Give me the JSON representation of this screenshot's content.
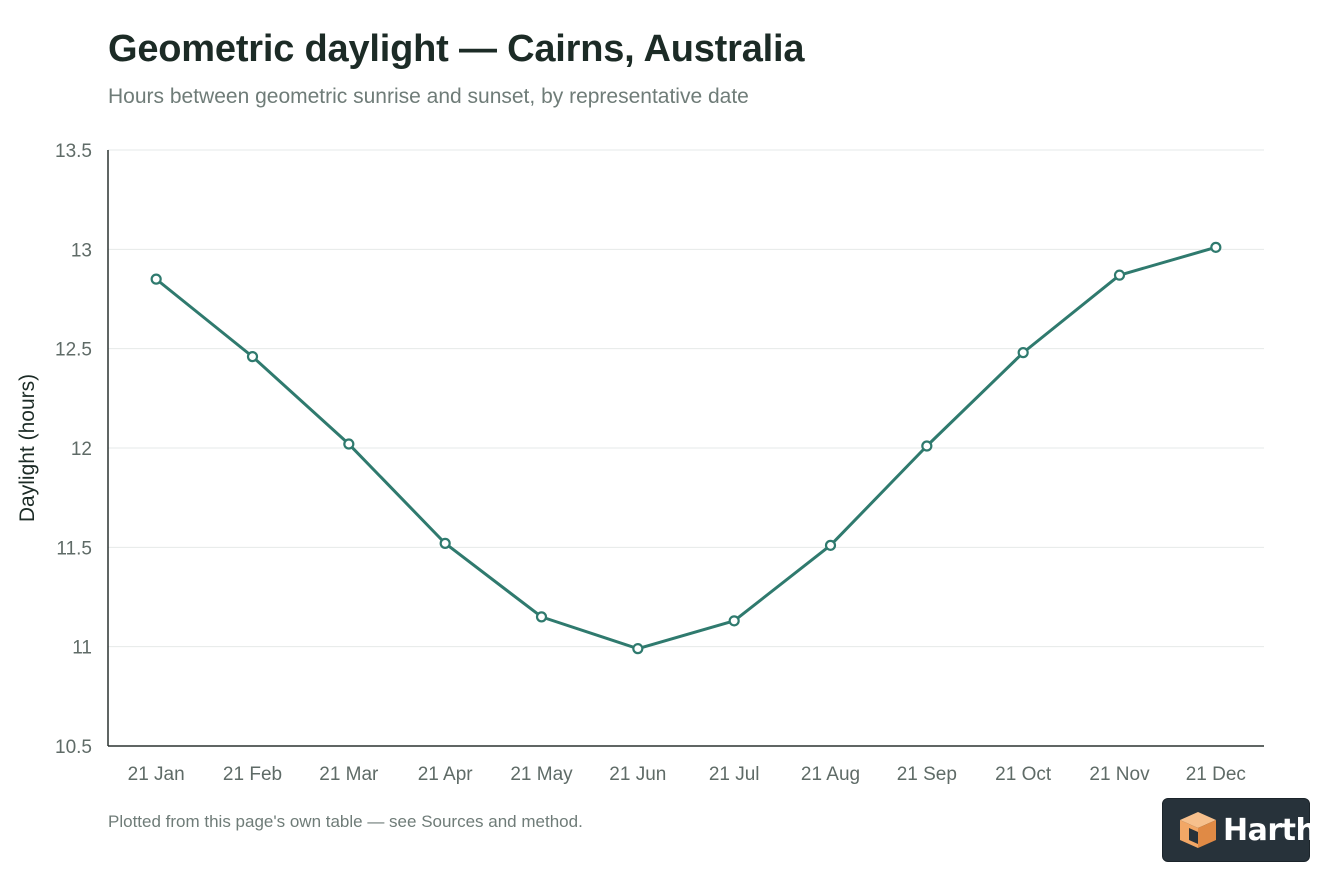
{
  "chart_data": {
    "type": "line",
    "title": "Geometric daylight — Cairns, Australia",
    "subtitle": "Hours between geometric sunrise and sunset, by representative date",
    "xlabel": "",
    "ylabel": "Daylight (hours)",
    "categories": [
      "21 Jan",
      "21 Feb",
      "21 Mar",
      "21 Apr",
      "21 May",
      "21 Jun",
      "21 Jul",
      "21 Aug",
      "21 Sep",
      "21 Oct",
      "21 Nov",
      "21 Dec"
    ],
    "series": [
      {
        "values": [
          12.85,
          12.46,
          12.02,
          11.52,
          11.15,
          10.99,
          11.13,
          11.51,
          12.01,
          12.48,
          12.87,
          13.01
        ],
        "color": "#2f7a6e"
      }
    ],
    "ylim": [
      10.5,
      13.5
    ],
    "yticks": [
      10.5,
      11,
      11.5,
      12,
      12.5,
      13,
      13.5
    ],
    "ytick_labels": [
      "10.5",
      "11",
      "11.5",
      "12",
      "12.5",
      "13",
      "13.5"
    ],
    "grid": true,
    "legend": "none",
    "footnote": "Plotted from this page's own table — see Sources and method."
  },
  "logo": {
    "text": "Harth",
    "accent": "#f2a766",
    "background": "#27323a"
  }
}
